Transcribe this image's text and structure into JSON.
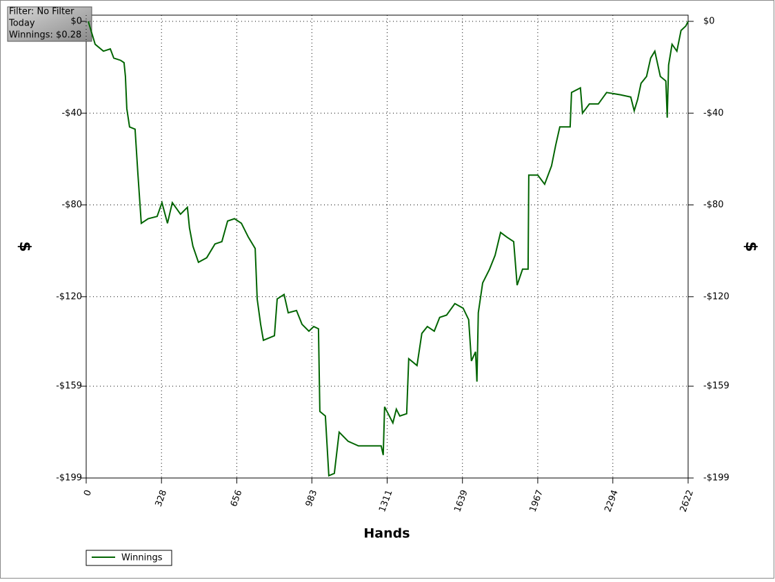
{
  "info_box": [
    "Filter: No Filter",
    "Today",
    "Winnings: $0.28"
  ],
  "chart_data": {
    "type": "line",
    "xlabel": "Hands",
    "ylabel": "$",
    "y2label": "$",
    "x": [
      9,
      39,
      75,
      105,
      120,
      150,
      165,
      171,
      177,
      189,
      213,
      225,
      240,
      270,
      309,
      330,
      354,
      375,
      411,
      441,
      450,
      465,
      489,
      525,
      561,
      591,
      616,
      646,
      676,
      706,
      736,
      745,
      760,
      772,
      820,
      832,
      862,
      880,
      916,
      940,
      970,
      991,
      1012,
      1018,
      1042,
      1057,
      1081,
      1102,
      1141,
      1186,
      1246,
      1285,
      1294,
      1300,
      1336,
      1351,
      1366,
      1396,
      1405,
      1441,
      1462,
      1486,
      1516,
      1540,
      1570,
      1606,
      1642,
      1666,
      1678,
      1696,
      1702,
      1708,
      1727,
      1757,
      1781,
      1805,
      1832,
      1862,
      1877,
      1901,
      1925,
      1928,
      1967,
      1997,
      2027,
      2045,
      2063,
      2108,
      2114,
      2153,
      2162,
      2192,
      2231,
      2267,
      2327,
      2372,
      2387,
      2402,
      2417,
      2441,
      2459,
      2477,
      2501,
      2525,
      2531,
      2537,
      2552,
      2573,
      2591,
      2612,
      2622
    ],
    "series": [
      {
        "name": "Winnings",
        "color": "#006400",
        "values": [
          0,
          -10,
          -13,
          -12,
          -16,
          -17,
          -18,
          -24,
          -38,
          -46,
          -47,
          -66,
          -88,
          -86,
          -85,
          -79,
          -88,
          -79,
          -84,
          -81,
          -90,
          -98,
          -105,
          -103,
          -97,
          -96,
          -87,
          -86,
          -88,
          -94,
          -99,
          -121,
          -132,
          -139,
          -137,
          -121,
          -119,
          -127,
          -126,
          -132,
          -135,
          -133,
          -134,
          -170,
          -172,
          -198,
          -197,
          -179,
          -183,
          -185,
          -185,
          -185,
          -189,
          -168,
          -175,
          -169,
          -172,
          -171,
          -147,
          -150,
          -136,
          -133,
          -135,
          -129,
          -128,
          -123,
          -125,
          -130,
          -148,
          -144,
          -157,
          -127,
          -114,
          -108,
          -102,
          -92,
          -94,
          -96,
          -115,
          -108,
          -108,
          -67,
          -67,
          -71,
          -63,
          -54,
          -46,
          -46,
          -31,
          -29,
          -40,
          -36,
          -36,
          -31,
          -32,
          -33,
          -39,
          -34,
          -27,
          -24,
          -16,
          -13,
          -24,
          -26,
          -42,
          -19,
          -10,
          -13,
          -4,
          -2,
          0
        ]
      }
    ],
    "xlim": [
      0,
      2622
    ],
    "xticks": [
      0,
      328,
      656,
      983,
      1311,
      1639,
      1967,
      2294,
      2622
    ],
    "ylim": [
      -199,
      0
    ],
    "yticks": [
      {
        "value": 0,
        "label": "$0"
      },
      {
        "value": -40,
        "label": "-$40"
      },
      {
        "value": -80,
        "label": "-$80"
      },
      {
        "value": -120,
        "label": "-$120"
      },
      {
        "value": -159,
        "label": "-$159"
      },
      {
        "value": -199,
        "label": "-$199"
      }
    ],
    "grid": true,
    "legend": "bottom-left"
  }
}
